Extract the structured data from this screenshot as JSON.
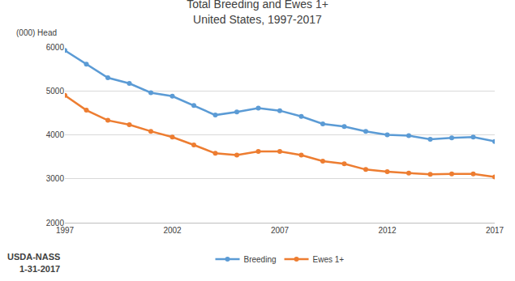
{
  "chart_data": {
    "type": "line",
    "title": "Total Breeding and Ewes 1+",
    "subtitle": "United States, 1997-2017",
    "y_label": "(000) Head",
    "annotations": [
      "USDA-NASS",
      "1-31-2017"
    ],
    "x": [
      1997,
      1998,
      1999,
      2000,
      2001,
      2002,
      2003,
      2004,
      2005,
      2006,
      2007,
      2008,
      2009,
      2010,
      2011,
      2012,
      2013,
      2014,
      2015,
      2016,
      2017
    ],
    "series": [
      {
        "name": "Breeding",
        "color": "#5b9bd5",
        "marker": "circle",
        "line_style": "solid",
        "values": [
          5920,
          5610,
          5300,
          5170,
          4960,
          4880,
          4670,
          4450,
          4520,
          4610,
          4550,
          4420,
          4250,
          4190,
          4080,
          4000,
          3980,
          3900,
          3930,
          3950,
          3850
        ]
      },
      {
        "name": "Ewes 1+",
        "color": "#ed7d31",
        "marker": "circle",
        "line_style": "solid",
        "values": [
          4900,
          4560,
          4330,
          4230,
          4080,
          3950,
          3770,
          3580,
          3540,
          3620,
          3620,
          3540,
          3400,
          3340,
          3210,
          3160,
          3130,
          3100,
          3110,
          3110,
          3040
        ]
      }
    ],
    "xlim": [
      1997,
      2017
    ],
    "xticks": [
      1997,
      2002,
      2007,
      2012,
      2017
    ],
    "ylim": [
      2000,
      6000
    ],
    "yticks": [
      2000,
      3000,
      4000,
      5000,
      6000
    ],
    "grid": true,
    "legend": "bottom"
  }
}
